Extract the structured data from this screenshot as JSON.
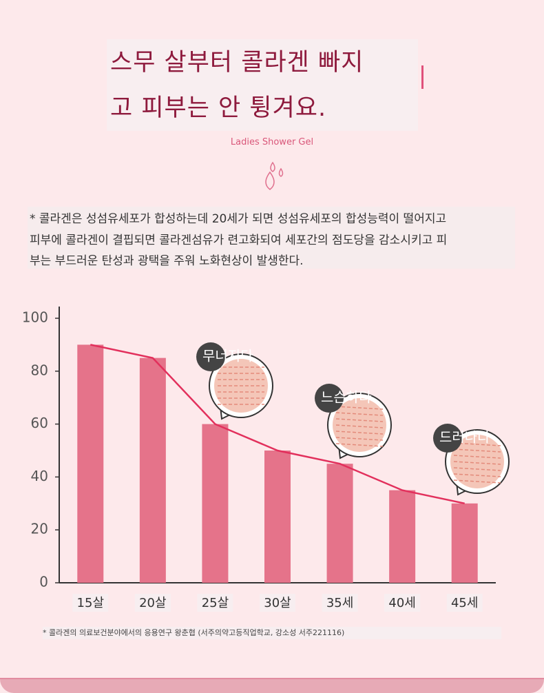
{
  "header": {
    "title_lines": [
      "스무 살부터 콜라겐 빠지",
      "고 피부는 안 튕겨요."
    ],
    "subtitle": "Ladies Shower Gel"
  },
  "description": [
    "* 콜라겐은 성섬유세포가 합성하는데 20세가 되면 성섬유세포의 합성능력이 떨어지고",
    "피부에 콜라겐이 결핍되면 콜라겐섬유가 련고화되여 세포간의 점도당을 감소시키고 피",
    "부는 부드러운 탄성과 광택을 주워 노화현상이 발생한다."
  ],
  "chart_data": {
    "type": "bar",
    "categories": [
      "15살",
      "20살",
      "25살",
      "30살",
      "35세",
      "40세",
      "45세"
    ],
    "values": [
      90,
      85,
      60,
      50,
      45,
      35,
      30
    ],
    "color": "#e5738a",
    "line_overlay": true,
    "line_color": "#e2305c",
    "ylim": [
      0,
      100
    ],
    "yticks": [
      0,
      20,
      40,
      60,
      80,
      100
    ],
    "annotations": [
      "무너지다",
      "느슨하다",
      "드러나다"
    ],
    "note": "* 콜라겐의 의료보건분야에서의 응용연구 왕춘협 (서주의약고등직업학교, 강소성 서주221116)"
  }
}
